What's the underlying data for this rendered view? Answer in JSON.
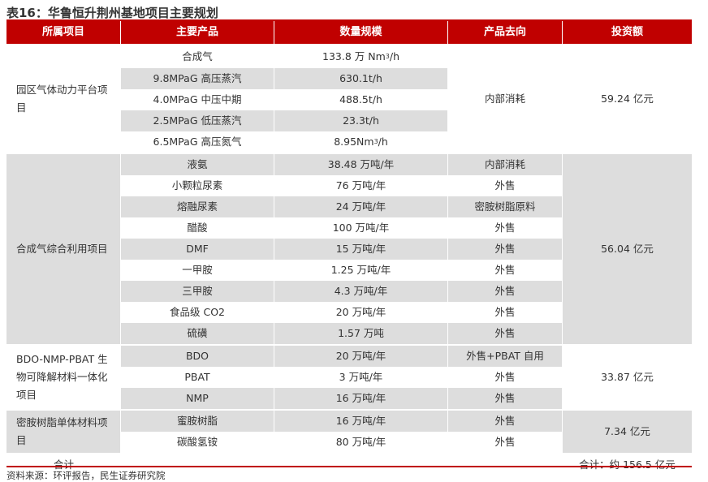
{
  "title": "表16：华鲁恒升荆州基地项目主要规划",
  "headers": [
    "所属项目",
    "主要产品",
    "数量规模",
    "产品去向",
    "投资额"
  ],
  "groups": [
    {
      "name": "园区气体动力平台项目",
      "destination": "内部消耗",
      "investment": "59.24 亿元",
      "rows": [
        {
          "product": "合成气",
          "scale_main": "133.8 万 Nm",
          "scale_sup": "3",
          "scale_tail": "/h"
        },
        {
          "product": "9.8MPaG 高压蒸汽",
          "scale_main": "630.1t/h"
        },
        {
          "product": "4.0MPaG 中压中期",
          "scale_main": "488.5t/h"
        },
        {
          "product": "2.5MPaG 低压蒸汽",
          "scale_main": "23.3t/h"
        },
        {
          "product": "6.5MPaG 高压氮气",
          "scale_main": "8.95Nm",
          "scale_sup": "3",
          "scale_tail": "/h"
        }
      ]
    },
    {
      "name": "合成气综合利用项目",
      "investment": "56.04 亿元",
      "rows": [
        {
          "product": "液氨",
          "scale_main": "38.48 万吨/年",
          "destination": "内部消耗"
        },
        {
          "product": "小颗粒尿素",
          "scale_main": "76 万吨/年",
          "destination": "外售"
        },
        {
          "product": "熔融尿素",
          "scale_main": "24 万吨/年",
          "destination": "密胺树脂原料"
        },
        {
          "product": "醋酸",
          "scale_main": "100 万吨/年",
          "destination": "外售"
        },
        {
          "product": "DMF",
          "scale_main": "15 万吨/年",
          "destination": "外售"
        },
        {
          "product": "一甲胺",
          "scale_main": "1.25 万吨/年",
          "destination": "外售"
        },
        {
          "product": "三甲胺",
          "scale_main": "4.3 万吨/年",
          "destination": "外售"
        },
        {
          "product": "食品级 CO2",
          "scale_main": "20 万吨/年",
          "destination": "外售"
        },
        {
          "product": "硫磺",
          "scale_main": "1.57 万吨",
          "destination": "外售"
        }
      ]
    },
    {
      "name": "BDO-NMP-PBAT 生物可降解材料一体化项目",
      "investment": "33.87 亿元",
      "rows": [
        {
          "product": "BDO",
          "scale_main": "20 万吨/年",
          "destination": "外售+PBAT 自用"
        },
        {
          "product": "PBAT",
          "scale_main": "3 万吨/年",
          "destination": "外售"
        },
        {
          "product": "NMP",
          "scale_main": "16 万吨/年",
          "destination": "外售"
        }
      ]
    },
    {
      "name": "密胺树脂单体材料项目",
      "investment": "7.34 亿元",
      "rows": [
        {
          "product": "蜜胺树脂",
          "scale_main": "16 万吨/年",
          "destination": "外售"
        },
        {
          "product": "碳酸氢铵",
          "scale_main": "80 万吨/年",
          "destination": "外售"
        }
      ]
    }
  ],
  "total": {
    "label": "合计",
    "value": "合计：约 156.5 亿元"
  },
  "source": "资料来源：环评报告，民生证券研究院",
  "colors": {
    "header_bg": "#c00000",
    "header_text": "#ffffff",
    "stripe": "#dddddd",
    "rule": "#c00000"
  }
}
